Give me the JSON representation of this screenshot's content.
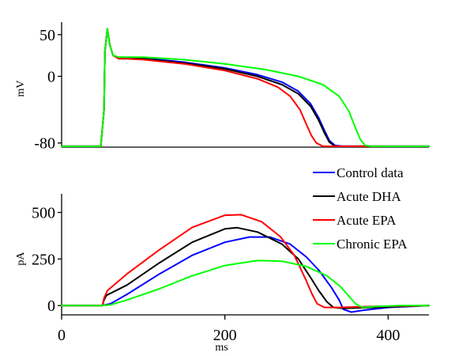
{
  "chart_data": [
    {
      "type": "line",
      "xlim": [
        0,
        450
      ],
      "ylim": [
        -85,
        65
      ],
      "ylabel": "mV",
      "yticks": [
        {
          "value": 50,
          "label": "50"
        },
        {
          "value": 0,
          "label": "0"
        },
        {
          "value": -80,
          "label": "-80"
        }
      ],
      "x_axis_visible": false,
      "grid": false,
      "series": [
        {
          "name": "Control data",
          "color": "#0000ff",
          "points": [
            [
              0,
              -84
            ],
            [
              48,
              -84
            ],
            [
              52,
              -40
            ],
            [
              53,
              30
            ],
            [
              56,
              57
            ],
            [
              59,
              38
            ],
            [
              63,
              25
            ],
            [
              70,
              22
            ],
            [
              80,
              22
            ],
            [
              100,
              22
            ],
            [
              150,
              17
            ],
            [
              200,
              10
            ],
            [
              240,
              2
            ],
            [
              270,
              -7
            ],
            [
              290,
              -18
            ],
            [
              305,
              -33
            ],
            [
              315,
              -50
            ],
            [
              322,
              -65
            ],
            [
              328,
              -77
            ],
            [
              335,
              -83
            ],
            [
              345,
              -84
            ],
            [
              450,
              -84
            ]
          ]
        },
        {
          "name": "Acute DHA",
          "color": "#000000",
          "points": [
            [
              0,
              -84
            ],
            [
              48,
              -84
            ],
            [
              52,
              -40
            ],
            [
              53,
              30
            ],
            [
              56,
              57
            ],
            [
              59,
              38
            ],
            [
              63,
              25
            ],
            [
              70,
              22
            ],
            [
              80,
              22
            ],
            [
              100,
              21
            ],
            [
              150,
              16
            ],
            [
              200,
              9
            ],
            [
              240,
              0
            ],
            [
              270,
              -10
            ],
            [
              290,
              -21
            ],
            [
              305,
              -36
            ],
            [
              315,
              -53
            ],
            [
              322,
              -68
            ],
            [
              328,
              -79
            ],
            [
              335,
              -84
            ],
            [
              450,
              -84
            ]
          ]
        },
        {
          "name": "Acute EPA",
          "color": "#ff0000",
          "points": [
            [
              0,
              -84
            ],
            [
              48,
              -84
            ],
            [
              52,
              -40
            ],
            [
              53,
              30
            ],
            [
              56,
              57
            ],
            [
              59,
              38
            ],
            [
              63,
              25
            ],
            [
              70,
              21
            ],
            [
              80,
              21
            ],
            [
              100,
              20
            ],
            [
              150,
              15
            ],
            [
              200,
              7
            ],
            [
              240,
              -3
            ],
            [
              265,
              -13
            ],
            [
              280,
              -24
            ],
            [
              292,
              -40
            ],
            [
              300,
              -58
            ],
            [
              306,
              -71
            ],
            [
              312,
              -80
            ],
            [
              320,
              -84
            ],
            [
              450,
              -84
            ]
          ]
        },
        {
          "name": "Chronic EPA",
          "color": "#00ff00",
          "points": [
            [
              0,
              -84
            ],
            [
              48,
              -84
            ],
            [
              52,
              -40
            ],
            [
              53,
              30
            ],
            [
              56,
              57
            ],
            [
              59,
              38
            ],
            [
              63,
              25
            ],
            [
              70,
              23
            ],
            [
              80,
              23
            ],
            [
              100,
              23
            ],
            [
              150,
              20
            ],
            [
              200,
              15
            ],
            [
              250,
              8
            ],
            [
              290,
              0
            ],
            [
              320,
              -10
            ],
            [
              340,
              -24
            ],
            [
              352,
              -42
            ],
            [
              360,
              -62
            ],
            [
              366,
              -76
            ],
            [
              372,
              -83
            ],
            [
              380,
              -84
            ],
            [
              450,
              -84
            ]
          ]
        }
      ]
    },
    {
      "type": "line",
      "xlim": [
        0,
        450
      ],
      "ylim": [
        -50,
        600
      ],
      "xlabel": "ms",
      "ylabel": "pA",
      "xticks": [
        {
          "value": 0,
          "label": "0"
        },
        {
          "value": 200,
          "label": "200"
        },
        {
          "value": 400,
          "label": "400"
        }
      ],
      "yticks": [
        {
          "value": 500,
          "label": "500"
        },
        {
          "value": 250,
          "label": "250"
        },
        {
          "value": 0,
          "label": "0"
        }
      ],
      "grid": false,
      "legend": {
        "position": "top-right",
        "entries": [
          "Control data",
          "Acute DHA",
          "Acute EPA",
          "Chronic EPA"
        ]
      },
      "series": [
        {
          "name": "Control data",
          "color": "#0000ff",
          "points": [
            [
              0,
              0
            ],
            [
              50,
              0
            ],
            [
              60,
              10
            ],
            [
              80,
              60
            ],
            [
              120,
              170
            ],
            [
              160,
              270
            ],
            [
              200,
              340
            ],
            [
              230,
              368
            ],
            [
              255,
              368
            ],
            [
              280,
              330
            ],
            [
              300,
              260
            ],
            [
              315,
              190
            ],
            [
              330,
              100
            ],
            [
              340,
              30
            ],
            [
              345,
              -20
            ],
            [
              355,
              -35
            ],
            [
              370,
              -25
            ],
            [
              400,
              -10
            ],
            [
              450,
              0
            ]
          ]
        },
        {
          "name": "Acute DHA",
          "color": "#000000",
          "points": [
            [
              0,
              0
            ],
            [
              50,
              0
            ],
            [
              52,
              30
            ],
            [
              55,
              55
            ],
            [
              80,
              110
            ],
            [
              120,
              230
            ],
            [
              160,
              340
            ],
            [
              200,
              412
            ],
            [
              215,
              418
            ],
            [
              240,
              395
            ],
            [
              270,
              330
            ],
            [
              290,
              250
            ],
            [
              305,
              150
            ],
            [
              315,
              80
            ],
            [
              325,
              20
            ],
            [
              333,
              -10
            ],
            [
              345,
              -15
            ],
            [
              380,
              -10
            ],
            [
              450,
              0
            ]
          ]
        },
        {
          "name": "Acute EPA",
          "color": "#ff0000",
          "points": [
            [
              0,
              0
            ],
            [
              50,
              0
            ],
            [
              52,
              40
            ],
            [
              56,
              80
            ],
            [
              80,
              170
            ],
            [
              120,
              300
            ],
            [
              160,
              420
            ],
            [
              200,
              485
            ],
            [
              220,
              488
            ],
            [
              245,
              450
            ],
            [
              268,
              370
            ],
            [
              285,
              270
            ],
            [
              298,
              150
            ],
            [
              307,
              60
            ],
            [
              313,
              10
            ],
            [
              322,
              -10
            ],
            [
              340,
              -10
            ],
            [
              380,
              -5
            ],
            [
              450,
              0
            ]
          ]
        },
        {
          "name": "Chronic EPA",
          "color": "#00ff00",
          "points": [
            [
              0,
              0
            ],
            [
              50,
              0
            ],
            [
              60,
              4
            ],
            [
              80,
              30
            ],
            [
              120,
              90
            ],
            [
              160,
              160
            ],
            [
              200,
              215
            ],
            [
              240,
              242
            ],
            [
              270,
              238
            ],
            [
              300,
              210
            ],
            [
              325,
              160
            ],
            [
              342,
              100
            ],
            [
              352,
              50
            ],
            [
              360,
              10
            ],
            [
              368,
              -10
            ],
            [
              385,
              -5
            ],
            [
              420,
              0
            ],
            [
              450,
              0
            ]
          ]
        }
      ]
    }
  ]
}
